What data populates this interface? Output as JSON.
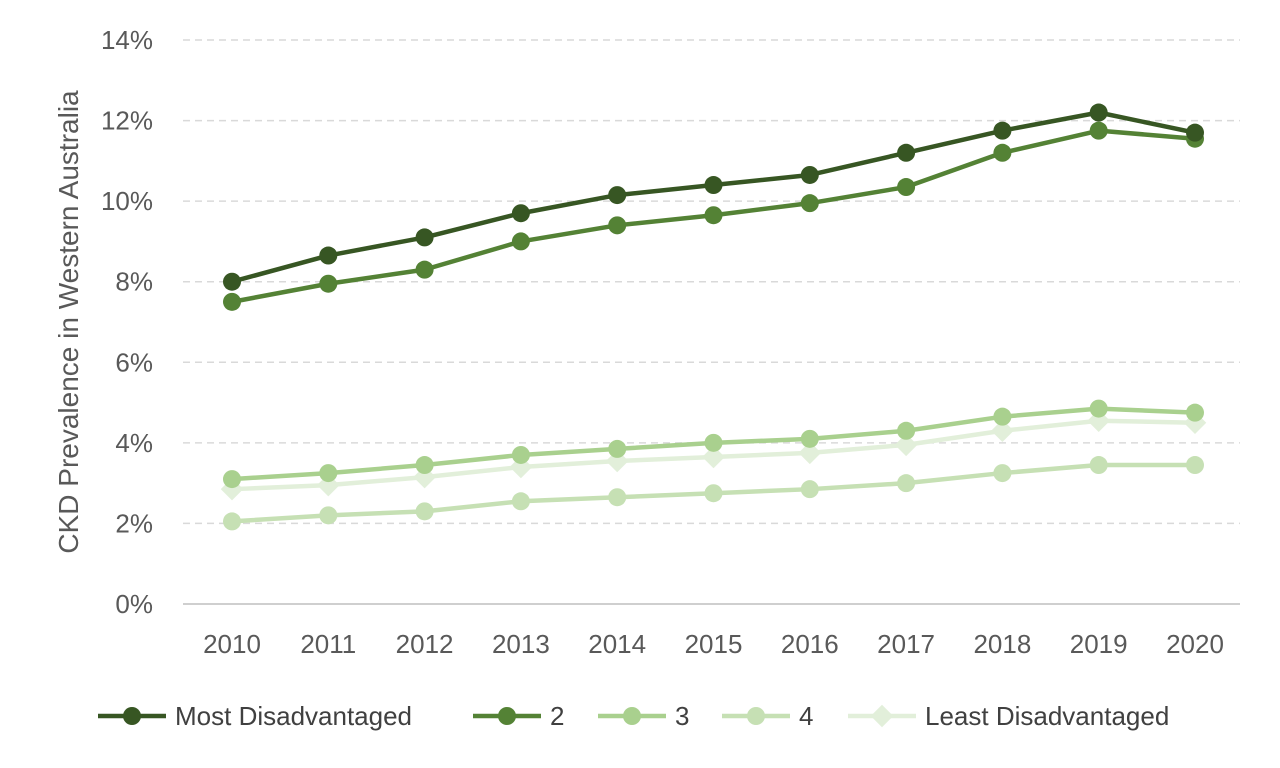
{
  "chart_data": {
    "type": "line",
    "title": "",
    "xlabel": "",
    "ylabel": "CKD Prevalence in Western Australia",
    "x": [
      "2010",
      "2011",
      "2012",
      "2013",
      "2014",
      "2015",
      "2016",
      "2017",
      "2018",
      "2019",
      "2020"
    ],
    "ylim": [
      0,
      14
    ],
    "yticks": [
      "0%",
      "2%",
      "4%",
      "6%",
      "8%",
      "10%",
      "12%",
      "14%"
    ],
    "grid": "horizontal dashed",
    "legend_position": "bottom",
    "series": [
      {
        "name": "Most Disadvantaged",
        "color": "#375623",
        "marker": "circle",
        "values": [
          8.0,
          8.65,
          9.1,
          9.7,
          10.15,
          10.4,
          10.65,
          11.2,
          11.75,
          12.2,
          11.7
        ]
      },
      {
        "name": "2",
        "color": "#548235",
        "marker": "circle",
        "values": [
          7.5,
          7.95,
          8.3,
          9.0,
          9.4,
          9.65,
          9.95,
          10.35,
          11.2,
          11.75,
          11.55
        ]
      },
      {
        "name": "3",
        "color": "#a9d08e",
        "marker": "circle",
        "values": [
          3.1,
          3.25,
          3.45,
          3.7,
          3.85,
          4.0,
          4.1,
          4.3,
          4.65,
          4.85,
          4.75
        ]
      },
      {
        "name": "4",
        "color": "#c6e0b4",
        "marker": "circle",
        "values": [
          2.05,
          2.2,
          2.3,
          2.55,
          2.65,
          2.75,
          2.85,
          3.0,
          3.25,
          3.45,
          3.45
        ]
      },
      {
        "name": "Least Disadvantaged",
        "color": "#e2efda",
        "marker": "diamond",
        "values": [
          2.85,
          2.95,
          3.15,
          3.4,
          3.55,
          3.65,
          3.75,
          3.95,
          4.3,
          4.55,
          4.5
        ]
      }
    ]
  }
}
